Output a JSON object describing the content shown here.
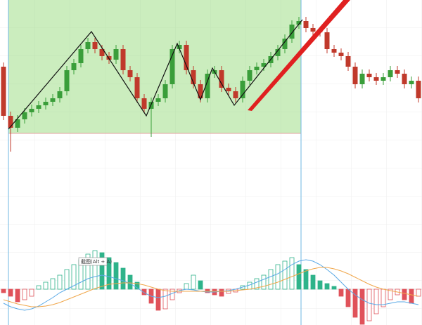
{
  "chart_data": [
    {
      "type": "candlestick",
      "up_color": "#3a9e3a",
      "down_color": "#c0392b",
      "open": [
        122.5,
        87.5,
        79,
        85,
        90,
        92.5,
        95,
        97.5,
        100,
        105,
        120,
        125,
        135,
        140,
        135,
        130,
        127.5,
        135,
        120,
        115,
        100,
        92.5,
        97.5,
        100,
        110,
        135,
        138,
        120,
        110,
        100,
        117.5,
        120,
        107.5,
        105,
        100,
        112.5,
        120,
        122.5,
        125,
        130,
        135,
        142.5,
        152.5,
        155,
        150,
        147.5,
        147,
        135,
        132.5,
        130,
        122.5,
        110,
        117.5,
        115,
        112.5,
        115,
        120,
        117.5,
        110,
        112.5
      ],
      "close": [
        87.5,
        79,
        85,
        90,
        92.5,
        95,
        97.5,
        100,
        105,
        120,
        125,
        135,
        140,
        135,
        130,
        127.5,
        135,
        120,
        115,
        100,
        92.5,
        97.5,
        100,
        110,
        135,
        138,
        120,
        110,
        100,
        117.5,
        120,
        107.5,
        105,
        100,
        112.5,
        120,
        122.5,
        125,
        130,
        135,
        142.5,
        152.5,
        155,
        150,
        147.5,
        147,
        135,
        132.5,
        130,
        122.5,
        110,
        117.5,
        115,
        112.5,
        115,
        120,
        117.5,
        110,
        112.5,
        100
      ],
      "high": [
        125.5,
        90.5,
        88,
        93,
        95.5,
        98,
        100.5,
        103,
        108,
        123,
        128,
        138,
        143,
        143,
        138,
        133,
        138,
        138,
        123,
        118,
        103,
        100.5,
        103,
        113,
        138,
        141,
        141,
        123,
        113,
        120.5,
        123,
        123,
        110.5,
        108,
        115.5,
        123,
        125.5,
        128,
        133,
        138,
        145.5,
        155.5,
        158,
        158,
        153,
        150.5,
        150,
        138,
        135.5,
        133,
        125.5,
        120.5,
        120.5,
        118,
        118,
        123,
        123,
        120.5,
        115.5,
        115.5
      ],
      "low": [
        84.5,
        62,
        76,
        82,
        87,
        89.5,
        92,
        94.5,
        97,
        102,
        117,
        122,
        132,
        132,
        127,
        124.5,
        124.5,
        117,
        112,
        97,
        89.5,
        72.5,
        94.5,
        97,
        107,
        132,
        117,
        107,
        97,
        97,
        114.5,
        104.5,
        102,
        97,
        97,
        109.5,
        117,
        119.5,
        122,
        127,
        132,
        139.5,
        149.5,
        147,
        144.5,
        144,
        132,
        129.5,
        127,
        119.5,
        107,
        107,
        112,
        109.5,
        109.5,
        112,
        114.5,
        107,
        107,
        97
      ]
    },
    {
      "type": "macd",
      "up_color": "#2fb38a",
      "down_color": "#e0525a",
      "dif_color": "#5aa9e6",
      "dea_color": "#f0a64a",
      "annotation": "截图(Alt + A)",
      "histogram": [
        -5,
        -10,
        -18,
        -15,
        -10,
        5,
        10,
        15,
        20,
        28,
        35,
        42,
        50,
        55,
        52,
        45,
        38,
        30,
        20,
        10,
        -8,
        -20,
        -30,
        -28,
        -15,
        -5,
        8,
        20,
        12,
        -5,
        -8,
        -10,
        -6,
        -4,
        5,
        10,
        15,
        20,
        28,
        35,
        40,
        45,
        35,
        28,
        20,
        12,
        8,
        4,
        -10,
        -25,
        -40,
        -50,
        -45,
        -35,
        -25,
        -15,
        -8,
        -15,
        -20,
        -10
      ],
      "dif": [
        -20,
        -25,
        -28,
        -30,
        -28,
        -24,
        -18,
        -12,
        -5,
        0,
        5,
        10,
        15,
        18,
        20,
        18,
        15,
        12,
        8,
        2,
        -5,
        -10,
        -12,
        -10,
        -6,
        -2,
        0,
        -1,
        -3,
        -4,
        -4,
        -3,
        -2,
        0,
        3,
        6,
        10,
        14,
        18,
        22,
        28,
        35,
        40,
        42,
        40,
        35,
        28,
        20,
        10,
        0,
        -8,
        -15,
        -20,
        -22,
        -22,
        -20,
        -18,
        -18,
        -20,
        -22
      ],
      "dea": [
        -15,
        -18,
        -21,
        -23,
        -25,
        -25,
        -24,
        -22,
        -19,
        -15,
        -11,
        -7,
        -3,
        1,
        4,
        7,
        8,
        9,
        9,
        8,
        6,
        3,
        0,
        -2,
        -3,
        -3,
        -3,
        -3,
        -3,
        -3,
        -3,
        -3,
        -3,
        -2,
        -1,
        0,
        2,
        4,
        7,
        10,
        14,
        18,
        22,
        26,
        29,
        31,
        31,
        29,
        26,
        22,
        17,
        12,
        7,
        3,
        0,
        -2,
        -4,
        -6,
        -8,
        -10
      ]
    }
  ]
}
